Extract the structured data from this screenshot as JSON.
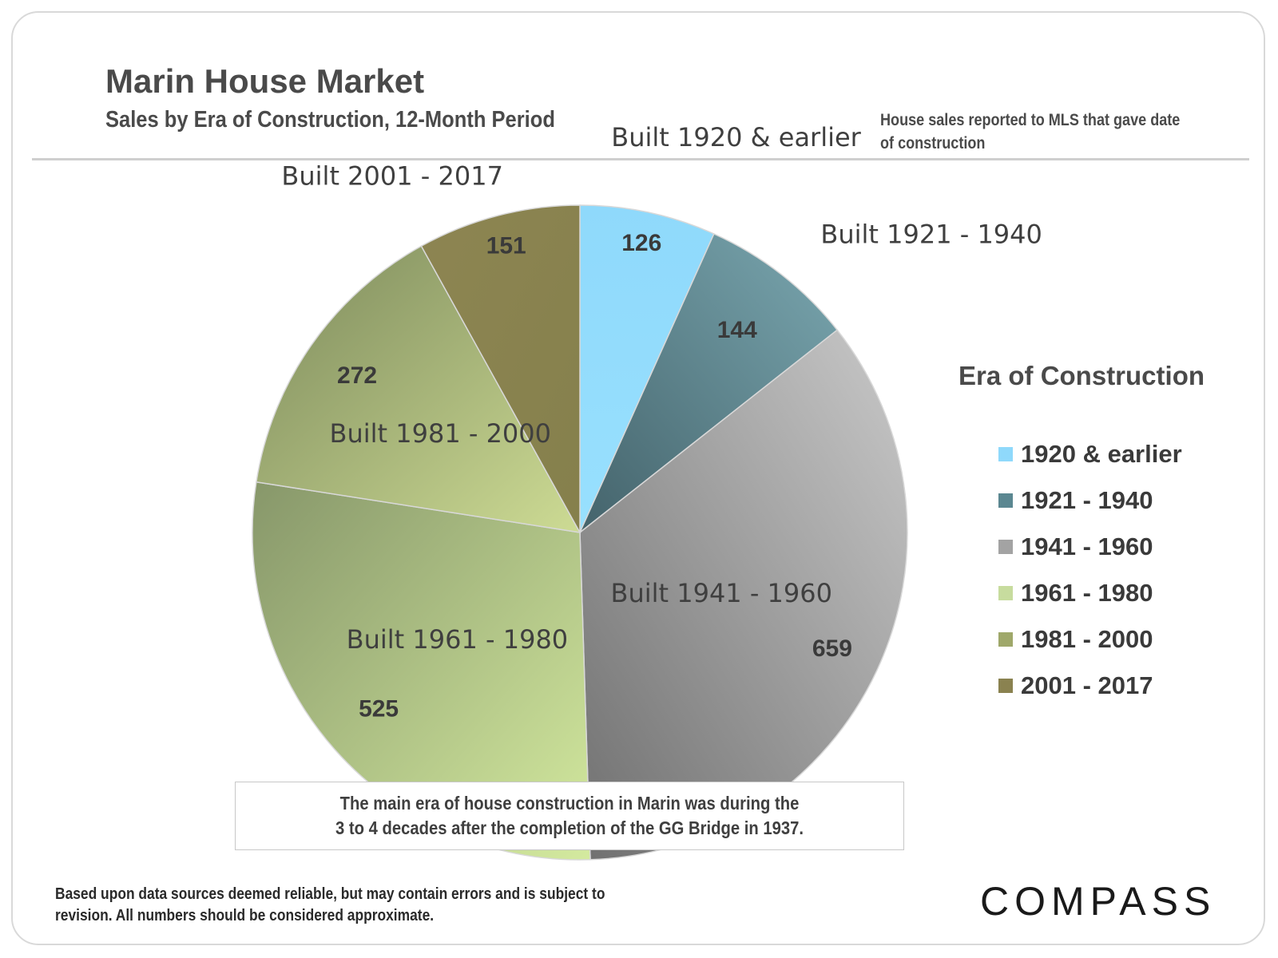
{
  "header": {
    "title": "Marin House Market",
    "subtitle": "Sales by Era of Construction, 12-Month Period",
    "note": "House sales reported to MLS that gave date of construction"
  },
  "chart_data": {
    "type": "pie",
    "title": "Sales by Era of Construction, 12-Month Period",
    "categories": [
      "1920 & earlier",
      "1921 - 1940",
      "1941 - 1960",
      "1961 - 1980",
      "1981 - 2000",
      "2001 - 2017"
    ],
    "slice_labels": [
      "Built 1920 & earlier",
      "Built 1921 - 1940",
      "Built 1941 - 1960",
      "Built 1961 - 1980",
      "Built 1981 - 2000",
      "Built 2001 - 2017"
    ],
    "values": [
      126,
      144,
      659,
      525,
      272,
      151
    ],
    "value_labels": [
      "126",
      "144",
      "659",
      "525",
      "272",
      "151"
    ],
    "colors": [
      "#8fd9fb",
      "#5e8f9a",
      "#a6a6a6",
      "#bfd49a",
      "#a5ad72",
      "#8b8350"
    ],
    "legend_title": "Era of Construction",
    "legend_position": "right"
  },
  "legend": {
    "title": "Era of Construction",
    "items": [
      {
        "label": "1920 & earlier",
        "color": "#8fd9fb"
      },
      {
        "label": "1921 - 1940",
        "color": "#5b8791"
      },
      {
        "label": "1941 - 1960",
        "color": "#a3a3a3"
      },
      {
        "label": "1961 - 1980",
        "color": "#c7dc9e"
      },
      {
        "label": "1981 - 2000",
        "color": "#9fa86a"
      },
      {
        "label": "2001 - 2017",
        "color": "#8a8250"
      }
    ]
  },
  "callout": {
    "line1": "The main era of house construction in Marin was during the",
    "line2": "3 to 4 decades after the completion of the GG Bridge in 1937."
  },
  "footer": {
    "disclaimer_line1": "Based upon data sources deemed reliable, but may contain errors and is subject to",
    "disclaimer_line2": "revision. All numbers should be considered approximate.",
    "logo": "COMPASS"
  }
}
